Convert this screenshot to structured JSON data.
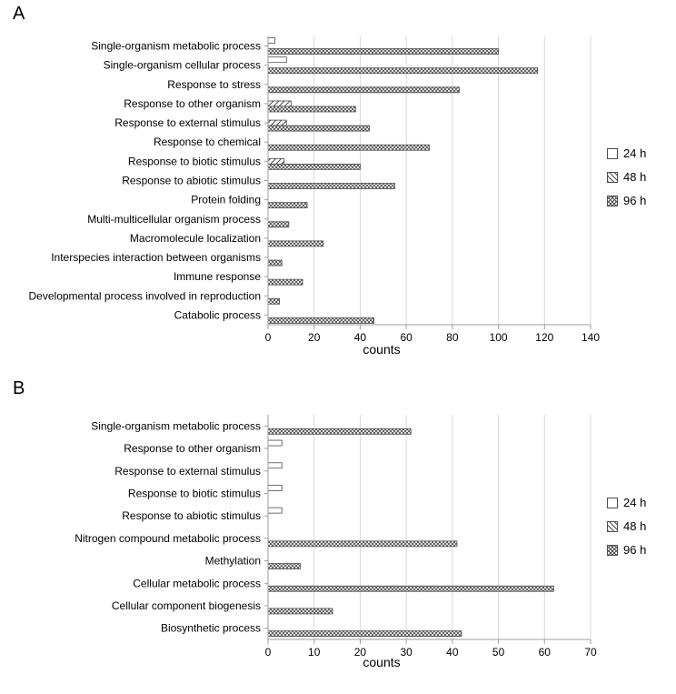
{
  "global": {
    "background_color": "#ffffff",
    "text_color": "#000000",
    "font_family": "Arial, Helvetica, sans-serif"
  },
  "legend": {
    "items": [
      {
        "label": "24 h",
        "pattern": "white"
      },
      {
        "label": "48 h",
        "pattern": "diag"
      },
      {
        "label": "96 h",
        "pattern": "dots"
      }
    ],
    "fontsize": 13
  },
  "panelA": {
    "label": "A",
    "type": "grouped-horizontal-bar",
    "xlabel": "counts",
    "xlim_min": 0,
    "xlim_max": 140,
    "xtick_step": 20,
    "tick_fontsize": 12,
    "catlabel_fontsize": 12,
    "title_fontsize": 14,
    "grid_color": "#d9d9d9",
    "axis_color": "#9e9e9e",
    "bar_border_color": "#4d4d4d",
    "bar_group_height": 18,
    "bar_sub_height": 6,
    "categories": [
      "Single-organism metabolic process",
      "Single-organism cellular process",
      "Response to stress",
      "Response to other organism",
      "Response to external stimulus",
      "Response to chemical",
      "Response to biotic stimulus",
      "Response to abiotic stimulus",
      "Protein folding",
      "Multi-multicellular organism process",
      "Macromolecule localization",
      "Interspecies interaction between organisms",
      "Immune response",
      "Developmental process involved in reproduction",
      "Catabolic process"
    ],
    "series": [
      {
        "name": "24 h",
        "pattern": "white",
        "values": [
          3,
          8,
          0,
          0,
          0,
          0,
          0,
          0,
          0,
          0,
          0,
          0,
          0,
          0,
          0
        ]
      },
      {
        "name": "48 h",
        "pattern": "diag",
        "values": [
          0,
          0,
          0,
          10,
          8,
          0,
          7,
          0,
          0,
          0,
          0,
          0,
          0,
          0,
          0
        ]
      },
      {
        "name": "96 h",
        "pattern": "dots",
        "values": [
          100,
          117,
          83,
          38,
          44,
          70,
          40,
          55,
          17,
          9,
          24,
          6,
          15,
          5,
          46
        ]
      }
    ]
  },
  "panelB": {
    "label": "B",
    "type": "grouped-horizontal-bar",
    "xlabel": "counts",
    "xlim_min": 0,
    "xlim_max": 70,
    "xtick_step": 10,
    "tick_fontsize": 12,
    "catlabel_fontsize": 12,
    "title_fontsize": 14,
    "grid_color": "#d9d9d9",
    "axis_color": "#9e9e9e",
    "bar_border_color": "#4d4d4d",
    "bar_group_height": 18,
    "bar_sub_height": 6,
    "categories": [
      "Single-organism metabolic process",
      "Response to other organism",
      "Response to external stimulus",
      "Response to biotic stimulus",
      "Response to abiotic stimulus",
      "Nitrogen compound metabolic process",
      "Methylation",
      "Cellular metabolic process",
      "Cellular component biogenesis",
      "Biosynthetic process"
    ],
    "series": [
      {
        "name": "24 h",
        "pattern": "white",
        "values": [
          0,
          3,
          3,
          3,
          3,
          0,
          0,
          0,
          0,
          0
        ]
      },
      {
        "name": "48 h",
        "pattern": "diag",
        "values": [
          0,
          0,
          0,
          0,
          0,
          0,
          0,
          0,
          0,
          0
        ]
      },
      {
        "name": "96 h",
        "pattern": "dots",
        "values": [
          31,
          0,
          0,
          0,
          0,
          41,
          7,
          62,
          14,
          42
        ]
      }
    ]
  }
}
